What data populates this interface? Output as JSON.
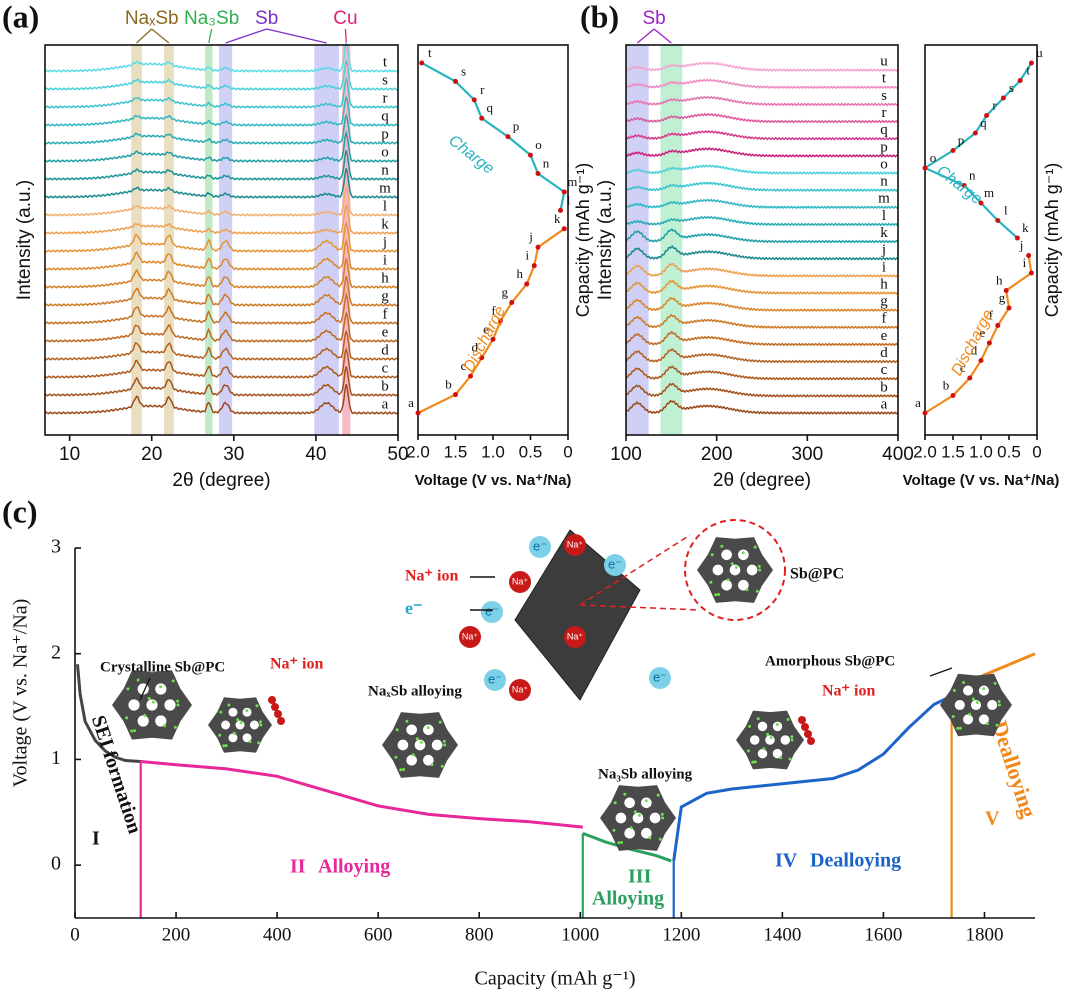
{
  "panels": {
    "a": "(a)",
    "b": "(b)",
    "c": "(c)"
  },
  "xrd_a": {
    "type": "xrd",
    "xlabel": "2θ (degree)",
    "ylabel": "Intensity (a.u.)",
    "xlim": [
      7,
      50
    ],
    "xticks": [
      10,
      20,
      30,
      40,
      50
    ],
    "phases": [
      {
        "name": "NaₓSb",
        "x": 20,
        "color": "#8a6a20"
      },
      {
        "name": "Na₃Sb",
        "x": 27.3,
        "color": "#30b050"
      },
      {
        "name": "Sb",
        "x": 34,
        "color": "#7a2fc8"
      },
      {
        "name": "Cu",
        "x": 43.6,
        "color": "#e0207a"
      }
    ],
    "bands": [
      {
        "x": [
          17.5,
          18.8
        ],
        "phase": 0,
        "color": "#e3d6b0"
      },
      {
        "x": [
          21.5,
          22.7
        ],
        "phase": 0,
        "color": "#e3d6b0"
      },
      {
        "x": [
          26.5,
          27.4
        ],
        "phase": 1,
        "color": "#b0e4b8"
      },
      {
        "x": [
          28.2,
          29.8
        ],
        "phase": 2,
        "color": "#c4c4f4"
      },
      {
        "x": [
          39.8,
          42.8
        ],
        "phase": 2,
        "color": "#c4c4f4"
      },
      {
        "x": [
          43.2,
          44.2
        ],
        "phase": 3,
        "color": "#f4a8b8"
      }
    ],
    "series": [
      {
        "name": "a",
        "color": "#9c4a1a"
      },
      {
        "name": "b",
        "color": "#a4521c"
      },
      {
        "name": "c",
        "color": "#ac5a1e"
      },
      {
        "name": "d",
        "color": "#b46220"
      },
      {
        "name": "e",
        "color": "#bc6a22"
      },
      {
        "name": "f",
        "color": "#c47224"
      },
      {
        "name": "g",
        "color": "#cc7a26"
      },
      {
        "name": "h",
        "color": "#d48228"
      },
      {
        "name": "i",
        "color": "#dc8a2c"
      },
      {
        "name": "j",
        "color": "#e49436"
      },
      {
        "name": "k",
        "color": "#eca050"
      },
      {
        "name": "l",
        "color": "#f0b070"
      },
      {
        "name": "m",
        "color": "#1a8a8c"
      },
      {
        "name": "n",
        "color": "#1c9498"
      },
      {
        "name": "o",
        "color": "#20a0a6"
      },
      {
        "name": "p",
        "color": "#28acb4"
      },
      {
        "name": "q",
        "color": "#30b8c2"
      },
      {
        "name": "r",
        "color": "#3cc4ce"
      },
      {
        "name": "s",
        "color": "#4ad0da"
      },
      {
        "name": "t",
        "color": "#5adce6"
      }
    ]
  },
  "volt_a": {
    "type": "profile",
    "xlabel": "Voltage (V vs. Na⁺/Na)",
    "ylabel": "Capacity (mAh g⁻¹)",
    "xlim": [
      2,
      0
    ],
    "xticks": [
      {
        "value": 2,
        "label": "2.0"
      },
      1.5,
      {
        "value": 1,
        "label": "1.0"
      },
      0.5,
      0
    ],
    "charge": "Charge",
    "discharge": "Discharge",
    "points": [
      {
        "label": "a",
        "x": 2.0
      },
      {
        "label": "b",
        "x": 1.5
      },
      {
        "label": "c",
        "x": 1.3
      },
      {
        "label": "d",
        "x": 1.15
      },
      {
        "label": "e",
        "x": 1.0
      },
      {
        "label": "f",
        "x": 0.9
      },
      {
        "label": "g",
        "x": 0.75
      },
      {
        "label": "h",
        "x": 0.55
      },
      {
        "label": "i",
        "x": 0.45
      },
      {
        "label": "j",
        "x": 0.4
      },
      {
        "label": "k",
        "x": 0.05
      },
      {
        "label": "l",
        "x": 0.1
      },
      {
        "label": "m",
        "x": 0.05
      },
      {
        "label": "n",
        "x": 0.4
      },
      {
        "label": "o",
        "x": 0.5
      },
      {
        "label": "p",
        "x": 0.8
      },
      {
        "label": "q",
        "x": 1.15
      },
      {
        "label": "r",
        "x": 1.25
      },
      {
        "label": "s",
        "x": 1.5
      },
      {
        "label": "t",
        "x": 1.95
      }
    ],
    "split": 11
  },
  "xrd_b": {
    "type": "xrd",
    "xlabel": "2θ (degree)",
    "ylabel": "Intensity (a.u.)",
    "xlim": [
      100,
      400
    ],
    "xticks": [
      100,
      200,
      300,
      400
    ],
    "phases": [
      {
        "name": "Sb",
        "x": 131,
        "color": "#a020c8"
      }
    ],
    "bands": [
      {
        "x": [
          100,
          125
        ],
        "phase": 0,
        "color": "#c4c4f4"
      },
      {
        "x": [
          138,
          162
        ],
        "phase": 0,
        "color": "#b0ecc8"
      }
    ],
    "series": [
      {
        "name": "a",
        "color": "#9c4a1a"
      },
      {
        "name": "b",
        "color": "#a4521c"
      },
      {
        "name": "c",
        "color": "#ac5a1e"
      },
      {
        "name": "d",
        "color": "#b46220"
      },
      {
        "name": "e",
        "color": "#c06c24"
      },
      {
        "name": "f",
        "color": "#cc7a26"
      },
      {
        "name": "g",
        "color": "#d8862a"
      },
      {
        "name": "h",
        "color": "#e49436"
      },
      {
        "name": "i",
        "color": "#eca050"
      },
      {
        "name": "j",
        "color": "#1a8a8c"
      },
      {
        "name": "k",
        "color": "#20a0a6"
      },
      {
        "name": "l",
        "color": "#28acb4"
      },
      {
        "name": "m",
        "color": "#30b8c2"
      },
      {
        "name": "n",
        "color": "#3cc4ce"
      },
      {
        "name": "o",
        "color": "#4ad0da"
      },
      {
        "name": "p",
        "color": "#c8207a"
      },
      {
        "name": "q",
        "color": "#d43a8c"
      },
      {
        "name": "r",
        "color": "#dc5a9e"
      },
      {
        "name": "s",
        "color": "#e474b0"
      },
      {
        "name": "t",
        "color": "#ec8cc0"
      },
      {
        "name": "u",
        "color": "#f2a4cf"
      }
    ]
  },
  "volt_b": {
    "type": "profile",
    "xlabel": "Voltage (V vs. Na⁺/Na)",
    "ylabel": "Capacity (mAh g⁻¹)",
    "xlim": [
      2,
      0
    ],
    "xticks": [
      {
        "value": 2,
        "label": "2.0"
      },
      1.5,
      {
        "value": 1,
        "label": "1.0"
      },
      0.5,
      0
    ],
    "charge": "Charge",
    "discharge": "Discharge",
    "points": [
      {
        "label": "a",
        "x": 2.0
      },
      {
        "label": "b",
        "x": 1.5
      },
      {
        "label": "c",
        "x": 1.2
      },
      {
        "label": "d",
        "x": 1.0
      },
      {
        "label": "e",
        "x": 0.85
      },
      {
        "label": "f",
        "x": 0.7
      },
      {
        "label": "g",
        "x": 0.5
      },
      {
        "label": "h",
        "x": 0.55
      },
      {
        "label": "i",
        "x": 0.1
      },
      {
        "label": "j",
        "x": 0.15
      },
      {
        "label": "k",
        "x": 0.35
      },
      {
        "label": "l",
        "x": 0.7
      },
      {
        "label": "m",
        "x": 1.0
      },
      {
        "label": "n",
        "x": 1.3
      },
      {
        "label": "o",
        "x": 2.0
      },
      {
        "label": "p",
        "x": 1.5
      },
      {
        "label": "q",
        "x": 1.1
      },
      {
        "label": "r",
        "x": 0.9
      },
      {
        "label": "s",
        "x": 0.6
      },
      {
        "label": "t",
        "x": 0.3
      },
      {
        "label": "u",
        "x": 0.1
      }
    ],
    "split": 10
  },
  "chart_data": {
    "type": "line",
    "xlabel": "Capacity (mAh g⁻¹)",
    "ylabel": "Voltage (V vs. Na⁺/Na)",
    "xlim": [
      0,
      1900
    ],
    "ylim": [
      -0.5,
      3
    ],
    "xticks": [
      0,
      200,
      400,
      600,
      800,
      1000,
      1200,
      1400,
      1600,
      1800
    ],
    "yticks": [
      0,
      1,
      2,
      3
    ],
    "series": [
      {
        "name": "SEI formation",
        "color": "#444444",
        "x": [
          5,
          10,
          20,
          40,
          60,
          80,
          100,
          130
        ],
        "values": [
          1.9,
          1.62,
          1.36,
          1.18,
          1.08,
          1.02,
          0.99,
          0.98
        ]
      },
      {
        "name": "Alloying",
        "color": "#e8289a",
        "x": [
          130,
          200,
          300,
          400,
          500,
          600,
          700,
          800,
          900,
          1005
        ],
        "values": [
          0.98,
          0.95,
          0.91,
          0.84,
          0.7,
          0.56,
          0.48,
          0.44,
          0.41,
          0.36
        ]
      },
      {
        "name": "Alloying",
        "color": "#2aa060",
        "x": [
          1005,
          1050,
          1100,
          1150,
          1180
        ],
        "values": [
          0.3,
          0.22,
          0.15,
          0.09,
          0.04
        ]
      },
      {
        "name": "Dealloying",
        "color": "#1c64c8",
        "x": [
          1185,
          1200,
          1250,
          1300,
          1400,
          1500,
          1550,
          1600,
          1650,
          1700,
          1735
        ],
        "values": [
          0.04,
          0.55,
          0.68,
          0.72,
          0.77,
          0.82,
          0.9,
          1.05,
          1.3,
          1.52,
          1.6
        ]
      },
      {
        "name": "Dealloying",
        "color": "#f08a1c",
        "x": [
          1735,
          1800,
          1900
        ],
        "values": [
          1.65,
          1.8,
          2.0
        ]
      }
    ],
    "stages": [
      "I",
      "II",
      "III",
      "IV",
      "V"
    ],
    "annotations": [
      "Crystalline Sb@PC",
      "Na⁺ ion",
      "NaₓSb alloying",
      "Na₃Sb alloying",
      "Na⁺ ion",
      "Amorphous Sb@PC",
      "Sb@PC",
      "Na⁺ ion",
      "e⁻",
      "e⁻",
      "Na⁺"
    ]
  }
}
